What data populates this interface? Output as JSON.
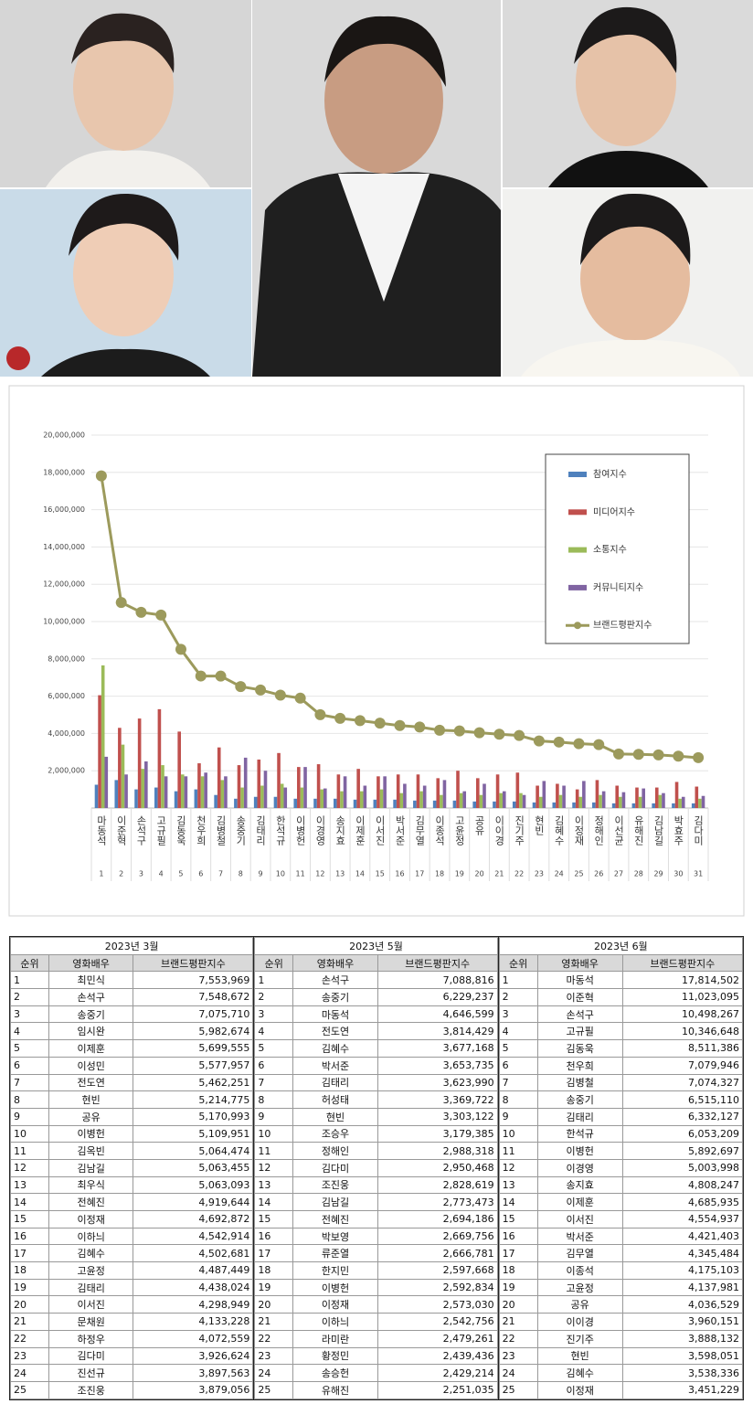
{
  "chart_data": {
    "type": "bar_line",
    "categories": [
      "마동석",
      "이준혁",
      "손석구",
      "고규필",
      "김동욱",
      "천우희",
      "김병철",
      "송중기",
      "김태리",
      "한석규",
      "이병헌",
      "이경영",
      "송지효",
      "이제훈",
      "이서진",
      "박서준",
      "김무열",
      "이종석",
      "고윤정",
      "공유",
      "이이경",
      "진기주",
      "현빈",
      "김혜수",
      "이정재",
      "정해인",
      "이선균",
      "유해진",
      "김남길",
      "박효주",
      "김다미"
    ],
    "category_numbers": [
      1,
      2,
      3,
      4,
      5,
      6,
      7,
      8,
      9,
      10,
      11,
      12,
      13,
      14,
      15,
      16,
      17,
      18,
      19,
      20,
      21,
      22,
      23,
      24,
      25,
      26,
      27,
      28,
      29,
      30,
      31
    ],
    "series": [
      {
        "name": "참여지수",
        "color": "#4f81bd",
        "kind": "bar",
        "values": [
          1250000,
          1500000,
          1000000,
          1100000,
          900000,
          1000000,
          700000,
          500000,
          600000,
          600000,
          500000,
          500000,
          500000,
          450000,
          450000,
          450000,
          400000,
          400000,
          400000,
          350000,
          350000,
          350000,
          300000,
          300000,
          300000,
          300000,
          250000,
          250000,
          250000,
          250000,
          250000
        ]
      },
      {
        "name": "미디어지수",
        "color": "#c0504d",
        "kind": "bar",
        "values": [
          6050000,
          4300000,
          4800000,
          5300000,
          4100000,
          2400000,
          3250000,
          2300000,
          2600000,
          2950000,
          2200000,
          2350000,
          1800000,
          2100000,
          1700000,
          1800000,
          1800000,
          1600000,
          2000000,
          1600000,
          1800000,
          1900000,
          1200000,
          1300000,
          1000000,
          1500000,
          1200000,
          1100000,
          1100000,
          1400000,
          1150000
        ]
      },
      {
        "name": "소통지수",
        "color": "#9bbb59",
        "kind": "bar",
        "values": [
          7650000,
          3400000,
          2100000,
          2300000,
          1800000,
          1700000,
          1500000,
          1100000,
          1200000,
          1300000,
          1100000,
          1000000,
          900000,
          900000,
          1000000,
          800000,
          900000,
          700000,
          800000,
          700000,
          800000,
          800000,
          600000,
          700000,
          600000,
          700000,
          600000,
          600000,
          700000,
          500000,
          500000
        ]
      },
      {
        "name": "커뮤니티지수",
        "color": "#8064a2",
        "kind": "bar",
        "values": [
          2750000,
          1800000,
          2500000,
          1700000,
          1700000,
          1900000,
          1700000,
          2700000,
          2000000,
          1100000,
          2200000,
          1050000,
          1700000,
          1200000,
          1700000,
          1300000,
          1200000,
          1500000,
          900000,
          1300000,
          900000,
          700000,
          1450000,
          1200000,
          1450000,
          900000,
          850000,
          1050000,
          800000,
          600000,
          650000
        ]
      },
      {
        "name": "브랜드평판지수",
        "color": "#9c9a5c",
        "kind": "line",
        "values": [
          17814502,
          11023095,
          10498267,
          10346648,
          8511386,
          7079946,
          7074327,
          6515110,
          6332127,
          6053209,
          5892697,
          5003998,
          4808247,
          4685935,
          4554937,
          4421403,
          4345484,
          4175103,
          4137981,
          4036529,
          3960151,
          3888132,
          3598051,
          3538336,
          3451229,
          3400000,
          2900000,
          2880000,
          2850000,
          2780000,
          2700000
        ]
      }
    ],
    "ylim": [
      0,
      20000000
    ],
    "yticks": [
      {
        "value": 2000000,
        "label": "2,000,000"
      },
      {
        "value": 4000000,
        "label": "4,000,000"
      },
      {
        "value": 6000000,
        "label": "6,000,000"
      },
      {
        "value": 8000000,
        "label": "8,000,000"
      },
      {
        "value": 10000000,
        "label": "10,000,000"
      },
      {
        "value": 12000000,
        "label": "12,000,000"
      },
      {
        "value": 14000000,
        "label": "14,000,000"
      },
      {
        "value": 16000000,
        "label": "16,000,000"
      },
      {
        "value": 18000000,
        "label": "18,000,000"
      },
      {
        "value": 20000000,
        "label": "20,000,000"
      }
    ],
    "grid": true,
    "legend": "upper right"
  },
  "tables": [
    {
      "title": "2023년 3월",
      "columns": [
        "순위",
        "영화배우",
        "브랜드평판지수"
      ],
      "rows": [
        [
          1,
          "최민식",
          "7,553,969"
        ],
        [
          2,
          "손석구",
          "7,548,672"
        ],
        [
          3,
          "송중기",
          "7,075,710"
        ],
        [
          4,
          "임시완",
          "5,982,674"
        ],
        [
          5,
          "이제훈",
          "5,699,555"
        ],
        [
          6,
          "이성민",
          "5,577,957"
        ],
        [
          7,
          "전도연",
          "5,462,251"
        ],
        [
          8,
          "현빈",
          "5,214,775"
        ],
        [
          9,
          "공유",
          "5,170,993"
        ],
        [
          10,
          "이병헌",
          "5,109,951"
        ],
        [
          11,
          "김옥빈",
          "5,064,474"
        ],
        [
          12,
          "김남길",
          "5,063,455"
        ],
        [
          13,
          "최우식",
          "5,063,093"
        ],
        [
          14,
          "전혜진",
          "4,919,644"
        ],
        [
          15,
          "이정재",
          "4,692,872"
        ],
        [
          16,
          "이하늬",
          "4,542,914"
        ],
        [
          17,
          "김혜수",
          "4,502,681"
        ],
        [
          18,
          "고윤정",
          "4,487,449"
        ],
        [
          19,
          "김태리",
          "4,438,024"
        ],
        [
          20,
          "이서진",
          "4,298,949"
        ],
        [
          21,
          "문채원",
          "4,133,228"
        ],
        [
          22,
          "하정우",
          "4,072,559"
        ],
        [
          23,
          "김다미",
          "3,926,624"
        ],
        [
          24,
          "진선규",
          "3,897,563"
        ],
        [
          25,
          "조진웅",
          "3,879,056"
        ]
      ]
    },
    {
      "title": "2023년 5월",
      "columns": [
        "순위",
        "영화배우",
        "브랜드평판지수"
      ],
      "rows": [
        [
          1,
          "손석구",
          "7,088,816"
        ],
        [
          2,
          "송중기",
          "6,229,237"
        ],
        [
          3,
          "마동석",
          "4,646,599"
        ],
        [
          4,
          "전도연",
          "3,814,429"
        ],
        [
          5,
          "김혜수",
          "3,677,168"
        ],
        [
          6,
          "박서준",
          "3,653,735"
        ],
        [
          7,
          "김태리",
          "3,623,990"
        ],
        [
          8,
          "허성태",
          "3,369,722"
        ],
        [
          9,
          "현빈",
          "3,303,122"
        ],
        [
          10,
          "조승우",
          "3,179,385"
        ],
        [
          11,
          "정해인",
          "2,988,318"
        ],
        [
          12,
          "김다미",
          "2,950,468"
        ],
        [
          13,
          "조진웅",
          "2,828,619"
        ],
        [
          14,
          "김남길",
          "2,773,473"
        ],
        [
          15,
          "전혜진",
          "2,694,186"
        ],
        [
          16,
          "박보영",
          "2,669,756"
        ],
        [
          17,
          "류준열",
          "2,666,781"
        ],
        [
          18,
          "한지민",
          "2,597,668"
        ],
        [
          19,
          "이병헌",
          "2,592,834"
        ],
        [
          20,
          "이정재",
          "2,573,030"
        ],
        [
          21,
          "이하늬",
          "2,542,756"
        ],
        [
          22,
          "라미란",
          "2,479,261"
        ],
        [
          23,
          "황정민",
          "2,439,436"
        ],
        [
          24,
          "송승헌",
          "2,429,214"
        ],
        [
          25,
          "유해진",
          "2,251,035"
        ]
      ]
    },
    {
      "title": "2023년 6월",
      "columns": [
        "순위",
        "영화배우",
        "브랜드평판지수"
      ],
      "rows": [
        [
          1,
          "마동석",
          "17,814,502"
        ],
        [
          2,
          "이준혁",
          "11,023,095"
        ],
        [
          3,
          "손석구",
          "10,498,267"
        ],
        [
          4,
          "고규필",
          "10,346,648"
        ],
        [
          5,
          "김동욱",
          "8,511,386"
        ],
        [
          6,
          "천우희",
          "7,079,946"
        ],
        [
          7,
          "김병철",
          "7,074,327"
        ],
        [
          8,
          "송중기",
          "6,515,110"
        ],
        [
          9,
          "김태리",
          "6,332,127"
        ],
        [
          10,
          "한석규",
          "6,053,209"
        ],
        [
          11,
          "이병헌",
          "5,892,697"
        ],
        [
          12,
          "이경영",
          "5,003,998"
        ],
        [
          13,
          "송지효",
          "4,808,247"
        ],
        [
          14,
          "이제훈",
          "4,685,935"
        ],
        [
          15,
          "이서진",
          "4,554,937"
        ],
        [
          16,
          "박서준",
          "4,421,403"
        ],
        [
          17,
          "김무열",
          "4,345,484"
        ],
        [
          18,
          "이종석",
          "4,175,103"
        ],
        [
          19,
          "고윤정",
          "4,137,981"
        ],
        [
          20,
          "공유",
          "4,036,529"
        ],
        [
          21,
          "이이경",
          "3,960,151"
        ],
        [
          22,
          "진기주",
          "3,888,132"
        ],
        [
          23,
          "현빈",
          "3,598,051"
        ],
        [
          24,
          "김혜수",
          "3,538,336"
        ],
        [
          25,
          "이정재",
          "3,451,229"
        ]
      ]
    }
  ]
}
